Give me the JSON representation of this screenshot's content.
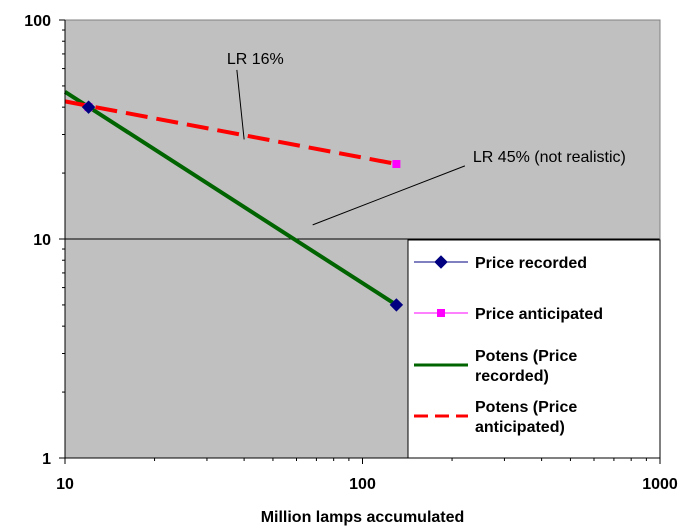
{
  "chart_data": {
    "type": "line",
    "title": "",
    "xlabel": "Million lamps accumulated",
    "ylabel": "",
    "x_scale": "log",
    "y_scale": "log",
    "xlim": [
      10,
      1000
    ],
    "ylim": [
      1,
      100
    ],
    "x_ticks": [
      "10",
      "100",
      "1000"
    ],
    "y_ticks": [
      "1",
      "10",
      "100"
    ],
    "grid": "horizontal major gridlines",
    "plot_background": "#c0c0c0",
    "legend_position": "right",
    "series": [
      {
        "name": "Price recorded",
        "kind": "markers",
        "marker": "diamond",
        "color": "#000080",
        "points": [
          {
            "x": 12,
            "y": 40
          },
          {
            "x": 130,
            "y": 5
          }
        ]
      },
      {
        "name": "Price anticipated",
        "kind": "markers",
        "marker": "square",
        "color": "#ff00ff",
        "points": [
          {
            "x": 12,
            "y": 40
          },
          {
            "x": 130,
            "y": 22
          }
        ]
      },
      {
        "name": "Potens (Price recorded)",
        "kind": "trendline",
        "style": "solid",
        "color": "#006400",
        "points": [
          {
            "x": 10,
            "y": 47
          },
          {
            "x": 130,
            "y": 5
          }
        ]
      },
      {
        "name": "Potens (Price anticipated)",
        "kind": "trendline",
        "style": "dashed",
        "color": "#ff0000",
        "points": [
          {
            "x": 10,
            "y": 42.5
          },
          {
            "x": 130,
            "y": 22
          }
        ]
      }
    ],
    "annotations": [
      {
        "text": "LR 16%",
        "label_at": {
          "x": 35,
          "y": 63
        },
        "pointer_to": {
          "x": 40,
          "y": 28.5
        }
      },
      {
        "text": "LR 45% (not realistic)",
        "label_at": {
          "x": 235,
          "y": 22.5
        },
        "pointer_to": {
          "x": 68,
          "y": 11.6
        }
      }
    ]
  }
}
